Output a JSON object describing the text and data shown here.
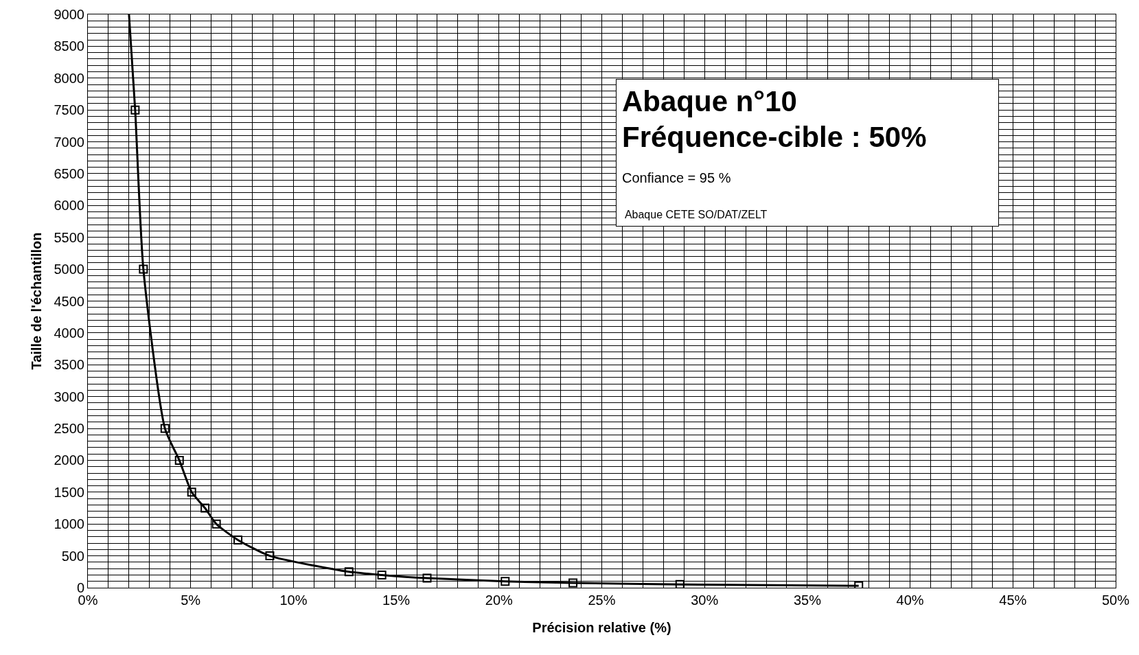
{
  "chart_data": {
    "type": "scatter",
    "xlabel": "Précision relative (%)",
    "ylabel": "Taille de l'échantillon",
    "annotations": [
      "Abaque n°10",
      "Fréquence-cible : 50%",
      "Confiance = 95 %",
      "Abaque CETE SO/DAT/ZELT"
    ],
    "series": [
      {
        "type": "line",
        "color": "#000000",
        "marker": "none",
        "x": [
          2.0,
          2.3,
          2.7,
          3.75,
          4.45,
          5.05,
          5.7,
          6.25,
          7.3,
          8.85,
          12.7,
          14.3,
          16.5,
          20.3,
          23.6,
          28.8,
          37.5
        ],
        "values": [
          9000,
          7500,
          5000,
          2500,
          2000,
          1500,
          1250,
          1000,
          750,
          500,
          250,
          200,
          150,
          100,
          75,
          50,
          30
        ]
      },
      {
        "color": "#000000",
        "marker": "square",
        "x": [
          2.3,
          2.7,
          3.75,
          4.45,
          5.05,
          5.7,
          6.25,
          7.3,
          8.85,
          12.7,
          14.3,
          16.5,
          20.3,
          23.6,
          28.8,
          37.5
        ],
        "values": [
          7500,
          5000,
          2500,
          2000,
          1500,
          1250,
          1000,
          750,
          500,
          250,
          200,
          150,
          100,
          75,
          50,
          30
        ]
      }
    ],
    "xlim": [
      0,
      50
    ],
    "ylim": [
      0,
      9000
    ],
    "grid": true,
    "xticks": [
      {
        "value": 0,
        "label": "0%"
      },
      {
        "value": 1,
        "label": null
      },
      {
        "value": 2,
        "label": null
      },
      {
        "value": 3,
        "label": null
      },
      {
        "value": 4,
        "label": null
      },
      {
        "value": 5,
        "label": "5%"
      },
      {
        "value": 6,
        "label": null
      },
      {
        "value": 7,
        "label": null
      },
      {
        "value": 8,
        "label": null
      },
      {
        "value": 9,
        "label": null
      },
      {
        "value": 10,
        "label": "10%"
      },
      {
        "value": 11,
        "label": null
      },
      {
        "value": 12,
        "label": null
      },
      {
        "value": 13,
        "label": null
      },
      {
        "value": 14,
        "label": null
      },
      {
        "value": 15,
        "label": "15%"
      },
      {
        "value": 16,
        "label": null
      },
      {
        "value": 17,
        "label": null
      },
      {
        "value": 18,
        "label": null
      },
      {
        "value": 19,
        "label": null
      },
      {
        "value": 20,
        "label": "20%"
      },
      {
        "value": 21,
        "label": null
      },
      {
        "value": 22,
        "label": null
      },
      {
        "value": 23,
        "label": null
      },
      {
        "value": 24,
        "label": null
      },
      {
        "value": 25,
        "label": "25%"
      },
      {
        "value": 26,
        "label": null
      },
      {
        "value": 27,
        "label": null
      },
      {
        "value": 28,
        "label": null
      },
      {
        "value": 29,
        "label": null
      },
      {
        "value": 30,
        "label": "30%"
      },
      {
        "value": 31,
        "label": null
      },
      {
        "value": 32,
        "label": null
      },
      {
        "value": 33,
        "label": null
      },
      {
        "value": 34,
        "label": null
      },
      {
        "value": 35,
        "label": "35%"
      },
      {
        "value": 36,
        "label": null
      },
      {
        "value": 37,
        "label": null
      },
      {
        "value": 38,
        "label": null
      },
      {
        "value": 39,
        "label": null
      },
      {
        "value": 40,
        "label": "40%"
      },
      {
        "value": 41,
        "label": null
      },
      {
        "value": 42,
        "label": null
      },
      {
        "value": 43,
        "label": null
      },
      {
        "value": 44,
        "label": null
      },
      {
        "value": 45,
        "label": "45%"
      },
      {
        "value": 46,
        "label": null
      },
      {
        "value": 47,
        "label": null
      },
      {
        "value": 48,
        "label": null
      },
      {
        "value": 49,
        "label": null
      },
      {
        "value": 50,
        "label": "50%"
      }
    ],
    "yticks": [
      0,
      {
        "value": 100,
        "label": null
      },
      {
        "value": 200,
        "label": null
      },
      {
        "value": 300,
        "label": null
      },
      {
        "value": 400,
        "label": null
      },
      500,
      {
        "value": 600,
        "label": null
      },
      {
        "value": 700,
        "label": null
      },
      {
        "value": 800,
        "label": null
      },
      {
        "value": 900,
        "label": null
      },
      1000,
      {
        "value": 1100,
        "label": null
      },
      {
        "value": 1200,
        "label": null
      },
      {
        "value": 1300,
        "label": null
      },
      {
        "value": 1400,
        "label": null
      },
      1500,
      {
        "value": 1600,
        "label": null
      },
      {
        "value": 1700,
        "label": null
      },
      {
        "value": 1800,
        "label": null
      },
      {
        "value": 1900,
        "label": null
      },
      2000,
      {
        "value": 2100,
        "label": null
      },
      {
        "value": 2200,
        "label": null
      },
      {
        "value": 2300,
        "label": null
      },
      {
        "value": 2400,
        "label": null
      },
      2500,
      {
        "value": 2600,
        "label": null
      },
      {
        "value": 2700,
        "label": null
      },
      {
        "value": 2800,
        "label": null
      },
      {
        "value": 2900,
        "label": null
      },
      3000,
      {
        "value": 3100,
        "label": null
      },
      {
        "value": 3200,
        "label": null
      },
      {
        "value": 3300,
        "label": null
      },
      {
        "value": 3400,
        "label": null
      },
      3500,
      {
        "value": 3600,
        "label": null
      },
      {
        "value": 3700,
        "label": null
      },
      {
        "value": 3800,
        "label": null
      },
      {
        "value": 3900,
        "label": null
      },
      4000,
      {
        "value": 4100,
        "label": null
      },
      {
        "value": 4200,
        "label": null
      },
      {
        "value": 4300,
        "label": null
      },
      {
        "value": 4400,
        "label": null
      },
      4500,
      {
        "value": 4600,
        "label": null
      },
      {
        "value": 4700,
        "label": null
      },
      {
        "value": 4800,
        "label": null
      },
      {
        "value": 4900,
        "label": null
      },
      5000,
      {
        "value": 5100,
        "label": null
      },
      {
        "value": 5200,
        "label": null
      },
      {
        "value": 5300,
        "label": null
      },
      {
        "value": 5400,
        "label": null
      },
      5500,
      {
        "value": 5600,
        "label": null
      },
      {
        "value": 5700,
        "label": null
      },
      {
        "value": 5800,
        "label": null
      },
      {
        "value": 5900,
        "label": null
      },
      6000,
      {
        "value": 6100,
        "label": null
      },
      {
        "value": 6200,
        "label": null
      },
      {
        "value": 6300,
        "label": null
      },
      {
        "value": 6400,
        "label": null
      },
      6500,
      {
        "value": 6600,
        "label": null
      },
      {
        "value": 6700,
        "label": null
      },
      {
        "value": 6800,
        "label": null
      },
      {
        "value": 6900,
        "label": null
      },
      7000,
      {
        "value": 7100,
        "label": null
      },
      {
        "value": 7200,
        "label": null
      },
      {
        "value": 7300,
        "label": null
      },
      {
        "value": 7400,
        "label": null
      },
      7500,
      {
        "value": 7600,
        "label": null
      },
      {
        "value": 7700,
        "label": null
      },
      {
        "value": 7800,
        "label": null
      },
      {
        "value": 7900,
        "label": null
      },
      8000,
      {
        "value": 8100,
        "label": null
      },
      {
        "value": 8200,
        "label": null
      },
      {
        "value": 8300,
        "label": null
      },
      {
        "value": 8400,
        "label": null
      },
      8500,
      {
        "value": 8600,
        "label": null
      },
      {
        "value": 8700,
        "label": null
      },
      {
        "value": 8800,
        "label": null
      },
      {
        "value": 8900,
        "label": null
      },
      9000
    ]
  }
}
